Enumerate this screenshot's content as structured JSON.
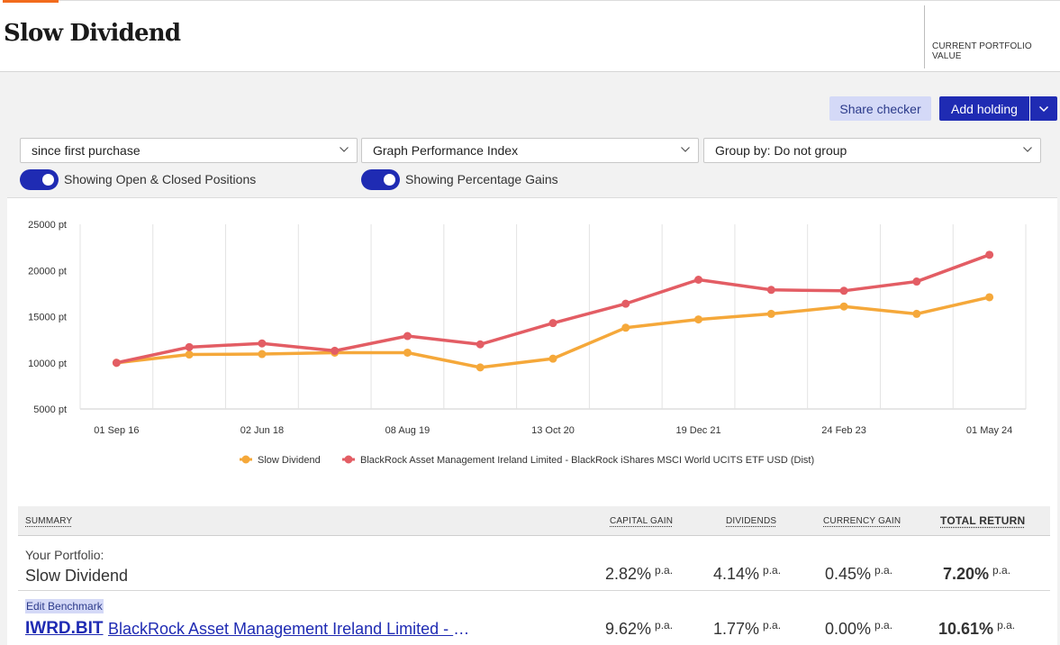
{
  "header": {
    "title": "Slow Dividend",
    "portfolio_value_label": "CURRENT PORTFOLIO VALUE"
  },
  "actions": {
    "share_checker": "Share checker",
    "add_holding": "Add holding"
  },
  "filters": {
    "period": "since first purchase",
    "graph_type": "Graph Performance Index",
    "group_by": "Group by: Do not group"
  },
  "toggles": {
    "positions": {
      "label": "Showing Open & Closed Positions",
      "on": true
    },
    "gains": {
      "label": "Showing Percentage Gains",
      "on": true
    }
  },
  "chart_data": {
    "type": "line",
    "title": "",
    "xlabel": "",
    "ylabel": "",
    "ylim": [
      5000,
      25000
    ],
    "yticks": [
      5000,
      10000,
      15000,
      20000,
      25000
    ],
    "ytick_labels": [
      "5000 pt",
      "10000 pt",
      "15000 pt",
      "20000 pt",
      "25000 pt"
    ],
    "x_tick_labels": [
      "01 Sep 16",
      "02 Jun 18",
      "08 Aug 19",
      "13 Oct 20",
      "19 Dec 21",
      "24 Feb 23",
      "01 May 24"
    ],
    "x": [
      "01 Sep 16",
      "",
      "02 Jun 18",
      "",
      "08 Aug 19",
      "",
      "13 Oct 20",
      "",
      "19 Dec 21",
      "",
      "24 Feb 23",
      "",
      "01 May 24"
    ],
    "grid": true,
    "legend": "bottom",
    "series": [
      {
        "name": "Slow Dividend",
        "color": "#f5a83a",
        "values": [
          10000,
          10900,
          10950,
          11100,
          11100,
          9500,
          10450,
          13800,
          14700,
          15300,
          16100,
          15300,
          17100
        ]
      },
      {
        "name": "BlackRock Asset Management Ireland Limited - BlackRock iShares MSCI World UCITS ETF USD (Dist)",
        "color": "#e35d64",
        "values": [
          10000,
          11700,
          12100,
          11300,
          12900,
          12000,
          14300,
          16400,
          19000,
          17900,
          17800,
          18800,
          21700
        ]
      }
    ]
  },
  "summary": {
    "headers": {
      "summary": "SUMMARY",
      "capital_gain": "CAPITAL GAIN",
      "dividends": "DIVIDENDS",
      "currency_gain": "CURRENCY GAIN",
      "total_return": "TOTAL RETURN"
    },
    "pa": "p.a.",
    "portfolio": {
      "label": "Your Portfolio:",
      "name": "Slow Dividend",
      "capital_gain": "2.82%",
      "dividends": "4.14%",
      "currency_gain": "0.45%",
      "total_return": "7.20%"
    },
    "benchmark": {
      "edit_label": "Edit Benchmark",
      "ticker": "IWRD.BIT",
      "name": "BlackRock Asset Management Ireland Limited - BlackRock iShares MSCI World UCITS ETF USD (Dist)",
      "capital_gain": "9.62%",
      "dividends": "1.77%",
      "currency_gain": "0.00%",
      "total_return": "10.61%"
    }
  }
}
